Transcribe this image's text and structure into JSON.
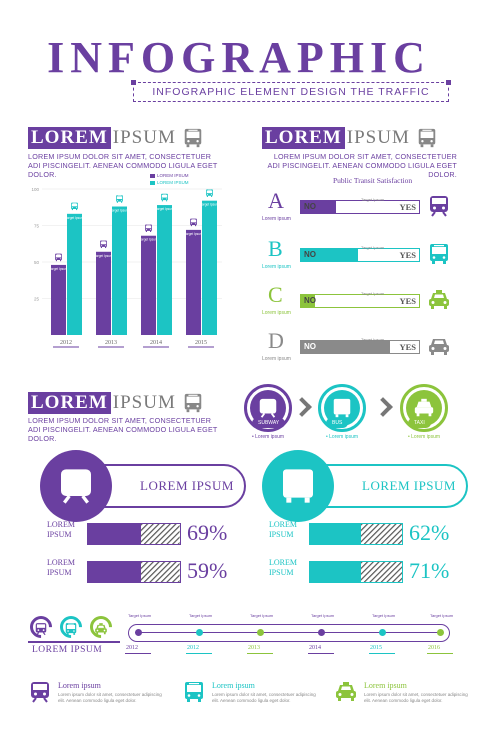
{
  "header": {
    "title": "INFOGRAPHIC",
    "subtitle": "INFOGRAPHIC ELEMENT DESIGN THE TRAFFIC"
  },
  "section_head": {
    "box": "LOREM",
    "rest": "IPSUM"
  },
  "lorem_text": "LOREM IPSUM DOLOR SIT AMET, CONSECTETUER ADI PISCINGELIT. AENEAN COMMODO LIGULA EGET DOLOR.",
  "colors": {
    "purple": "#6a3fa0",
    "teal": "#1cc4c4",
    "lime": "#8cc43c",
    "gray": "#8a8a8a"
  },
  "chart_data": {
    "type": "bar",
    "categories": [
      "2012",
      "2013",
      "2014",
      "2015"
    ],
    "yticks": [
      "100",
      "75",
      "50",
      "25"
    ],
    "ylim": [
      0,
      100
    ],
    "series": [
      {
        "name": "LOREM IPSUM",
        "color": "#6a3fa0",
        "values": [
          48,
          57,
          68,
          72
        ]
      },
      {
        "name": "LOREM IPSUM",
        "color": "#1cc4c4",
        "values": [
          83,
          88,
          89,
          92
        ]
      }
    ],
    "bar_label": "Target Ipsum",
    "legend_position": "top-right",
    "title": "",
    "xlabel": "",
    "ylabel": ""
  },
  "satisfaction": {
    "title": "Public Transit Satisfaction",
    "no": "NO",
    "yes": "YES",
    "target": "Target Ipsum",
    "sub": "Lorem ipsum",
    "rows": [
      {
        "letter": "A",
        "color": "#6a3fa0",
        "level": 0.3,
        "icon": "train-icon"
      },
      {
        "letter": "B",
        "color": "#1cc4c4",
        "level": 0.48,
        "icon": "bus-icon"
      },
      {
        "letter": "C",
        "color": "#8cc43c",
        "level": 0.12,
        "icon": "taxi-icon"
      },
      {
        "letter": "D",
        "color": "#8a8a8a",
        "level": 0.75,
        "icon": "car-icon"
      }
    ]
  },
  "transport": [
    {
      "label": "SUBWAY",
      "caption": "• Lorem ipsum",
      "color": "#6a3fa0",
      "icon": "train-icon"
    },
    {
      "label": "BUS",
      "caption": "• Lorem ipsum",
      "color": "#1cc4c4",
      "icon": "bus-icon"
    },
    {
      "label": "TAXI",
      "caption": "• Lorem ipsum",
      "color": "#8cc43c",
      "icon": "taxi-icon"
    }
  ],
  "banners": [
    {
      "label": "LOREM IPSUM",
      "color": "#6a3fa0",
      "icon": "train-icon",
      "stats": [
        {
          "label1": "LOREM",
          "label2": "IPSUM",
          "value": "69%",
          "level": 0.58
        },
        {
          "label1": "LOREM",
          "label2": "IPSUM",
          "value": "59%",
          "level": 0.58
        }
      ]
    },
    {
      "label": "LOREM IPSUM",
      "color": "#1cc4c4",
      "icon": "bus-icon",
      "stats": [
        {
          "label1": "LOREM",
          "label2": "IPSUM",
          "value": "62%",
          "level": 0.55
        },
        {
          "label1": "LOREM",
          "label2": "IPSUM",
          "value": "71%",
          "level": 0.55
        }
      ]
    }
  ],
  "timeline": {
    "label": "LOREM IPSUM",
    "target": "Target Ipsum",
    "years": [
      {
        "year": "2012",
        "color": "#6a3fa0"
      },
      {
        "year": "2012",
        "color": "#1cc4c4"
      },
      {
        "year": "2013",
        "color": "#8cc43c"
      },
      {
        "year": "2014",
        "color": "#6a3fa0"
      },
      {
        "year": "2015",
        "color": "#1cc4c4"
      },
      {
        "year": "2016",
        "color": "#8cc43c"
      }
    ]
  },
  "footer": [
    {
      "title": "Lorem ipsum",
      "text": "Lorem ipsum dolor sit amet, consectetuer adipiscing elit. Aenean commodo ligula eget dolor.",
      "color": "#6a3fa0",
      "icon": "train-icon"
    },
    {
      "title": "Lorem ipsum",
      "text": "Lorem ipsum dolor sit amet, consectetuer adipiscing elit. Aenean commodo ligula eget dolor.",
      "color": "#1cc4c4",
      "icon": "bus-icon"
    },
    {
      "title": "Lorem ipsum",
      "text": "Lorem ipsum dolor sit amet, consectetuer adipiscing elit. Aenean commodo ligula eget dolor.",
      "color": "#8cc43c",
      "icon": "taxi-icon"
    }
  ]
}
